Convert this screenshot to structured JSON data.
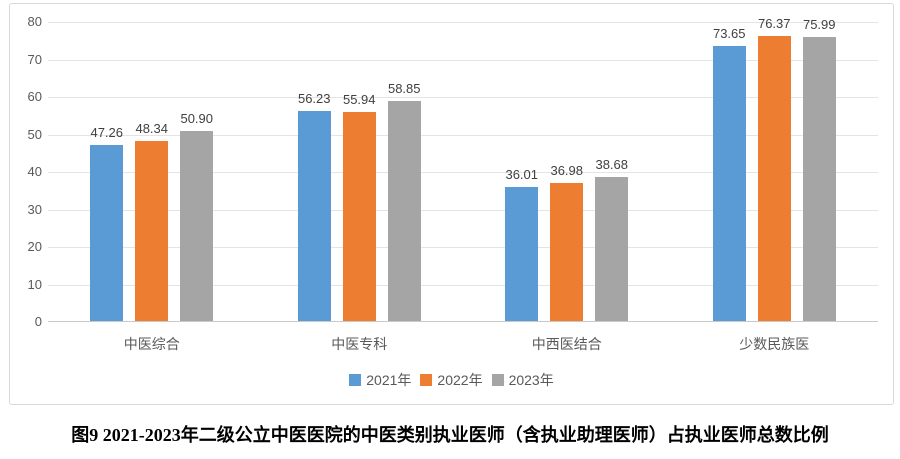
{
  "figure_caption": "图9 2021-2023年二级公立中医医院的中医类别执业医师（含执业助理医师）占执业医师总数比例",
  "chart_data": {
    "type": "bar",
    "title": "",
    "xlabel": "",
    "ylabel": "",
    "categories": [
      "中医综合",
      "中医专科",
      "中西医结合",
      "少数民族医"
    ],
    "series": [
      {
        "name": "2021年",
        "color": "#5B9BD5",
        "values": [
          47.26,
          56.23,
          36.01,
          73.65
        ]
      },
      {
        "name": "2022年",
        "color": "#ED7D31",
        "values": [
          48.34,
          55.94,
          36.98,
          76.37
        ]
      },
      {
        "name": "2023年",
        "color": "#A5A5A5",
        "values": [
          50.9,
          58.85,
          38.68,
          75.99
        ]
      }
    ],
    "ylim": [
      0,
      80
    ],
    "ytick_step": 10,
    "yticks": [
      0,
      10,
      20,
      30,
      40,
      50,
      60,
      70,
      80
    ],
    "grid": true,
    "legend_position": "bottom",
    "value_labels": true,
    "value_label_decimals": 2
  },
  "style": {
    "axis_text_color": "#595959",
    "value_label_color": "#404040",
    "gridline_color": "#E4E4E4",
    "axis_line_color": "#C9C9C9",
    "frame_border_color": "#D9D9D9",
    "caption_color": "#000000"
  }
}
